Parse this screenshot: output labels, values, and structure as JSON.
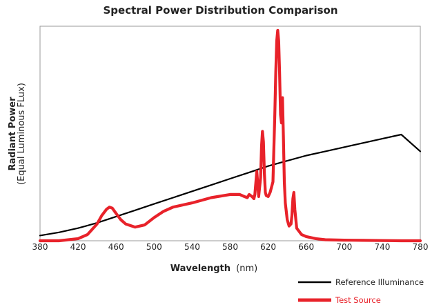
{
  "chart_data": {
    "type": "line",
    "title": "Spectral Power Distribution Comparison",
    "xlabel": "Wavelength",
    "xlabel_unit": "(nm)",
    "ylabel": "Radiant Power",
    "ylabel_sub": "(Equal Luminous FLux)",
    "xlim": [
      380,
      780
    ],
    "ylim": [
      0,
      100
    ],
    "xticks": [
      380,
      420,
      460,
      500,
      540,
      580,
      620,
      660,
      700,
      740,
      780
    ],
    "grid": false,
    "legend_position": "bottom-right",
    "series": [
      {
        "name": "Reference Illuminance",
        "color": "#000000",
        "x": [
          380,
          400,
          420,
          440,
          460,
          480,
          500,
          520,
          540,
          560,
          580,
          600,
          620,
          640,
          660,
          680,
          700,
          720,
          740,
          760,
          780
        ],
        "y": [
          2.5,
          4.0,
          6.0,
          8.5,
          11.5,
          14.5,
          17.5,
          20.5,
          23.5,
          26.5,
          29.5,
          32.5,
          35.5,
          38.0,
          40.5,
          42.5,
          44.5,
          46.5,
          48.5,
          50.5,
          42.5
        ]
      },
      {
        "name": "Test Source",
        "color": "#e8222a",
        "x": [
          380,
          400,
          420,
          430,
          440,
          445,
          450,
          453,
          456,
          460,
          465,
          470,
          480,
          490,
          500,
          510,
          520,
          540,
          560,
          580,
          590,
          595,
          598,
          600,
          603,
          605,
          606,
          608,
          610,
          612,
          613,
          614,
          615,
          616,
          617,
          618,
          620,
          622,
          625,
          627,
          628,
          629,
          630,
          631,
          632,
          633,
          634,
          635,
          636,
          637,
          638,
          640,
          642,
          644,
          645,
          646,
          647,
          648,
          650,
          655,
          660,
          670,
          680,
          700,
          720,
          740,
          760,
          780
        ],
        "y": [
          0,
          0,
          1,
          3,
          8,
          12,
          15,
          16,
          15.5,
          13,
          10,
          8,
          6.5,
          7.5,
          11,
          14,
          16,
          18,
          20.5,
          22,
          22,
          21,
          20.5,
          22,
          21,
          20,
          22,
          33,
          21,
          30,
          45,
          52,
          47,
          32,
          23,
          21.5,
          21,
          23,
          28,
          60,
          80,
          95,
          100,
          95,
          80,
          60,
          56,
          68,
          50,
          28,
          18,
          10,
          7,
          8,
          12,
          20,
          23,
          15,
          6,
          3,
          2,
          1,
          0.5,
          0.3,
          0.2,
          0.1,
          0,
          0
        ]
      }
    ]
  }
}
